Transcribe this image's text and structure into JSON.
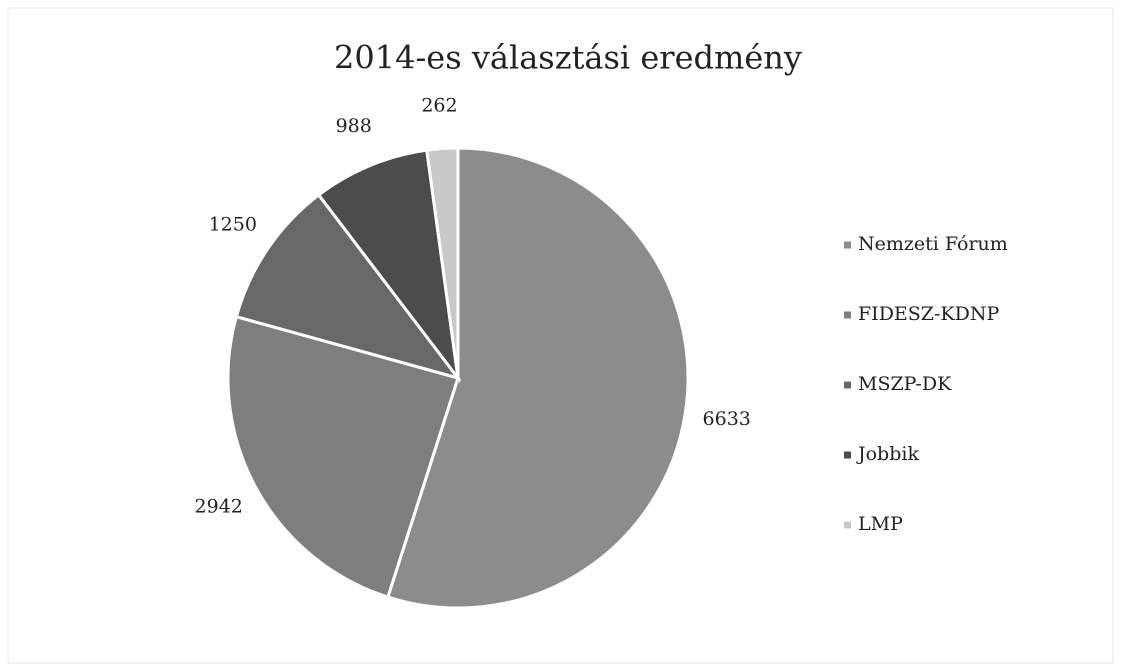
{
  "chart_data": {
    "type": "pie",
    "title": "2014-es választási eredmény",
    "categories": [
      "Nemzeti Fórum",
      "FIDESZ-KDNP",
      "MSZP-DK",
      "Jobbik",
      "LMP"
    ],
    "values": [
      6633,
      2942,
      1250,
      988,
      262
    ],
    "colors": [
      "#8c8c8c",
      "#7e7e7e",
      "#686868",
      "#4c4c4c",
      "#c9c9c9"
    ],
    "legend": "right"
  }
}
